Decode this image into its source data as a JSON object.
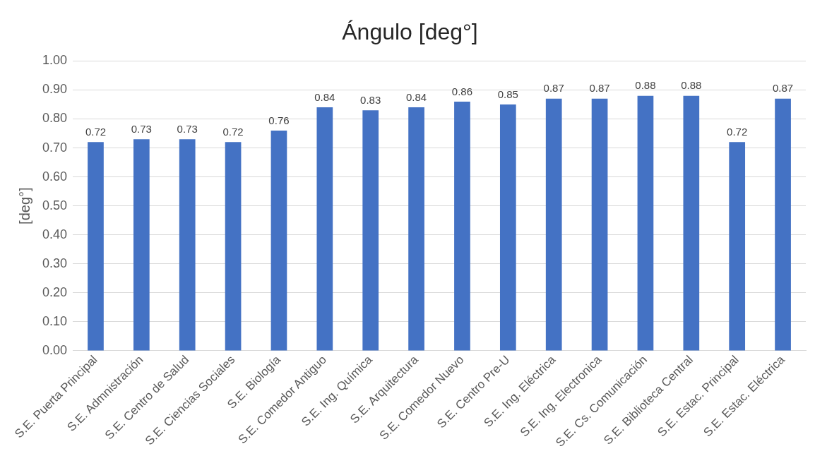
{
  "chart_data": {
    "type": "bar",
    "title": "Ángulo [deg°]",
    "ylabel": "[deg°]",
    "categories": [
      "S.E. Puerta Principal",
      "S.E. Admnistración",
      "S.E. Centro de Salud",
      "S.E. Ciencias Sociales",
      "S.E. Biología",
      "S.E. Comedor Antiguo",
      "S.E. Ing. Química",
      "S.E. Arquitectura",
      "S.E. Comedor Nuevo",
      "S.E. Centro Pre-U",
      "S.E. Ing. Eléctrica",
      "S.E. Ing. Electronica",
      "S.E. Cs. Comunicación",
      "S.E. Biblioteca Central",
      "S.E. Estac. Principal",
      "S.E. Estac. Eléctrica"
    ],
    "values": [
      0.72,
      0.73,
      0.73,
      0.72,
      0.76,
      0.84,
      0.83,
      0.84,
      0.86,
      0.85,
      0.87,
      0.87,
      0.88,
      0.88,
      0.72,
      0.87
    ],
    "color": "#4472c4",
    "data_labels": true,
    "ylim": [
      0,
      1
    ],
    "yticks": [
      {
        "value": 0,
        "label": "0.00"
      },
      {
        "value": 0.1,
        "label": "0.10"
      },
      {
        "value": 0.2,
        "label": "0.20"
      },
      {
        "value": 0.3,
        "label": "0.30"
      },
      {
        "value": 0.4,
        "label": "0.40"
      },
      {
        "value": 0.5,
        "label": "0.50"
      },
      {
        "value": 0.6,
        "label": "0.60"
      },
      {
        "value": 0.7,
        "label": "0.70"
      },
      {
        "value": 0.8,
        "label": "0.80"
      },
      {
        "value": 0.9,
        "label": "0.90"
      },
      {
        "value": 1,
        "label": "1.00"
      }
    ],
    "grid": "y",
    "legend": false
  }
}
